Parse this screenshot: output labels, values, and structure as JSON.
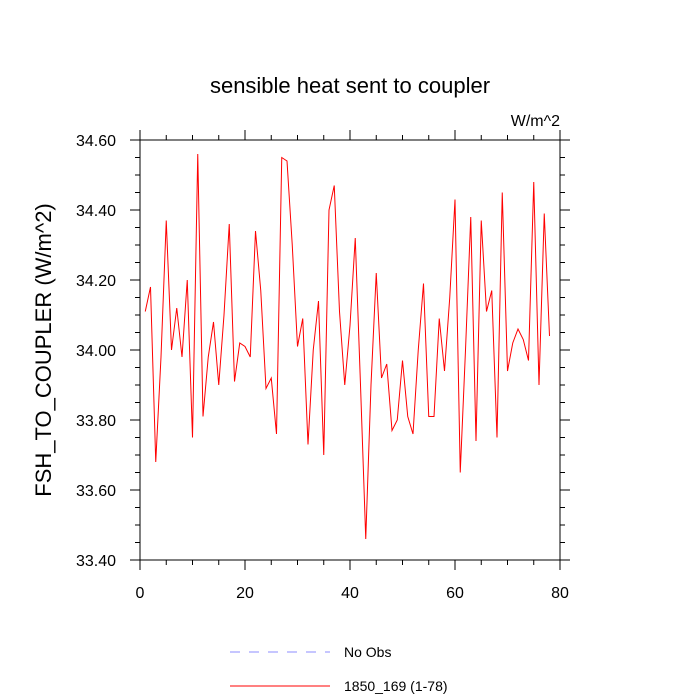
{
  "chart_data": {
    "type": "line",
    "title": "sensible heat sent to coupler",
    "units": "W/m^2",
    "ylabel": "FSH_TO_COUPLER  (W/m^2)",
    "xlabel": "",
    "xlim": [
      0,
      80
    ],
    "ylim": [
      33.4,
      34.6
    ],
    "x_ticks": [
      0,
      20,
      40,
      60,
      80
    ],
    "x_tick_labels": [
      "0",
      "20",
      "40",
      "60",
      "80"
    ],
    "y_ticks": [
      33.4,
      33.6,
      33.8,
      34.0,
      34.2,
      34.4,
      34.6
    ],
    "y_tick_labels": [
      "33.40",
      "33.60",
      "33.80",
      "34.00",
      "34.20",
      "34.40",
      "34.60"
    ],
    "grid": false,
    "legend_placement": "bottom",
    "legend": [
      {
        "name": "No Obs",
        "color": "#8c8cff",
        "style": "dashed"
      },
      {
        "name": "1850_169 (1-78)",
        "color": "#ff0000",
        "style": "solid"
      }
    ],
    "series": [
      {
        "name": "1850_169 (1-78)",
        "color": "#ff0000",
        "x": [
          1,
          2,
          3,
          4,
          5,
          6,
          7,
          8,
          9,
          10,
          11,
          12,
          13,
          14,
          15,
          16,
          17,
          18,
          19,
          20,
          21,
          22,
          23,
          24,
          25,
          26,
          27,
          28,
          29,
          30,
          31,
          32,
          33,
          34,
          35,
          36,
          37,
          38,
          39,
          40,
          41,
          42,
          43,
          44,
          45,
          46,
          47,
          48,
          49,
          50,
          51,
          52,
          53,
          54,
          55,
          56,
          57,
          58,
          59,
          60,
          61,
          62,
          63,
          64,
          65,
          66,
          67,
          68,
          69,
          70,
          71,
          72,
          73,
          74,
          75,
          76,
          77,
          78
        ],
        "values": [
          34.11,
          34.18,
          33.68,
          33.98,
          34.37,
          34.0,
          34.12,
          33.98,
          34.2,
          33.75,
          34.56,
          33.81,
          33.98,
          34.08,
          33.9,
          34.1,
          34.36,
          33.91,
          34.02,
          34.01,
          33.98,
          34.34,
          34.17,
          33.89,
          33.92,
          33.76,
          34.55,
          34.54,
          34.3,
          34.01,
          34.09,
          33.73,
          34.0,
          34.14,
          33.7,
          34.4,
          34.47,
          34.11,
          33.9,
          34.07,
          34.32,
          33.9,
          33.46,
          33.9,
          34.22,
          33.92,
          33.96,
          33.77,
          33.8,
          33.97,
          33.81,
          33.76,
          34.0,
          34.19,
          33.81,
          33.81,
          34.09,
          33.94,
          34.15,
          34.43,
          33.65,
          34.0,
          34.38,
          33.74,
          34.37,
          34.11,
          34.17,
          33.75,
          34.45,
          33.94,
          34.02,
          34.06,
          34.03,
          33.97,
          34.48,
          33.9,
          34.39,
          34.04
        ]
      }
    ]
  }
}
